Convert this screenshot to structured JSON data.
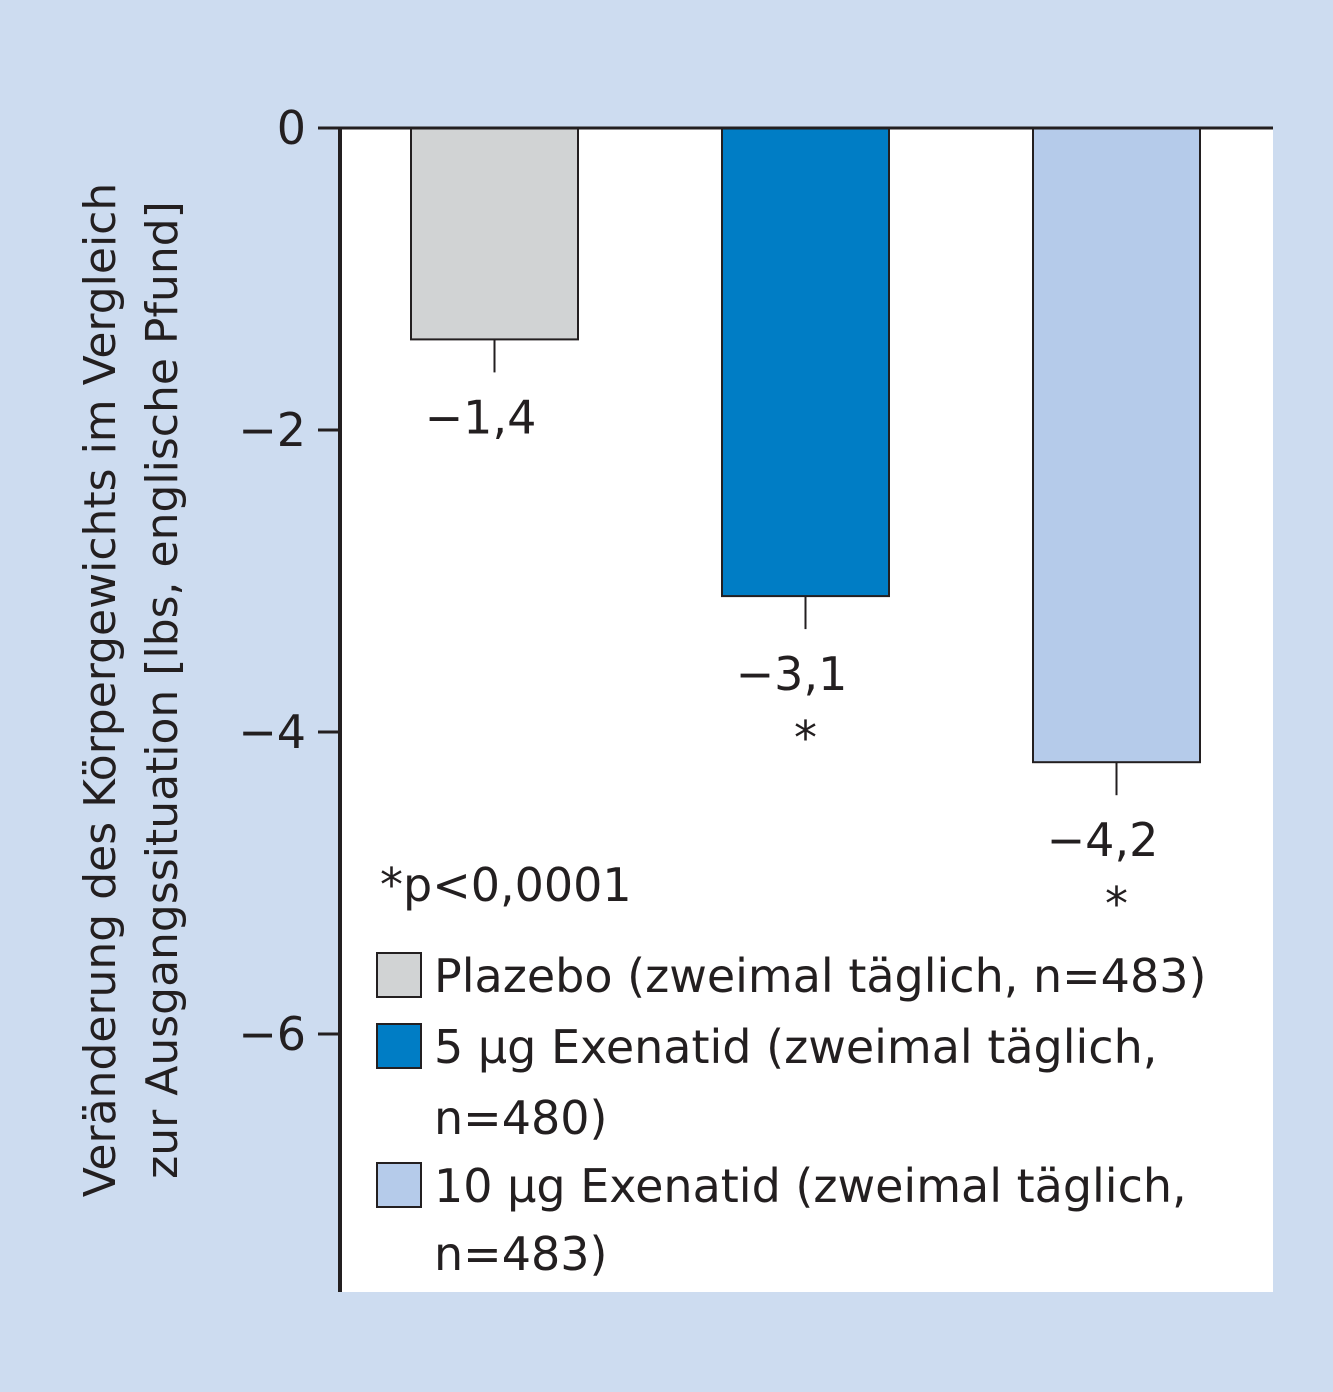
{
  "colors": {
    "frame": "#cddcf0",
    "plot_bg": "#ffffff",
    "axis": "#231f20",
    "text": "#231f20"
  },
  "chart_data": {
    "type": "bar",
    "categories": [
      "Plazebo (zweimal täglich, n=483)",
      "5 µg Exenatid (zweimal täglich, n=480)",
      "10 µg Exenatid (zweimal täglich, n=483)"
    ],
    "values": [
      -1.4,
      -3.1,
      -4.2
    ],
    "value_labels": [
      "−1,4",
      "−3,1",
      "−4,2"
    ],
    "significance_marks": [
      "",
      "*",
      "*"
    ],
    "bar_colors": [
      "#d1d3d4",
      "#007dc5",
      "#b5cbea"
    ],
    "error_bars": true,
    "ylabel_lines": [
      "Veränderung des Körpergewichts im Vergleich",
      "zur Ausgangssituation [lbs, englische Pfund]"
    ],
    "yticks": [
      0,
      -2,
      -4,
      -6
    ],
    "ytick_labels": [
      "0",
      "−2",
      "−4",
      "−6"
    ],
    "ylim": [
      -7.7,
      0
    ],
    "grid": false,
    "note": "*p<0,0001",
    "legend_placement": "bottom-left inside plot",
    "legend": [
      {
        "color": "#d1d3d4",
        "lines": [
          "Plazebo (zweimal täglich, n=483)"
        ]
      },
      {
        "color": "#007dc5",
        "lines": [
          "5 µg Exenatid (zweimal täglich,",
          "n=480)"
        ]
      },
      {
        "color": "#b5cbea",
        "lines": [
          "10 µg Exenatid (zweimal täglich,",
          "n=483)"
        ]
      }
    ]
  }
}
